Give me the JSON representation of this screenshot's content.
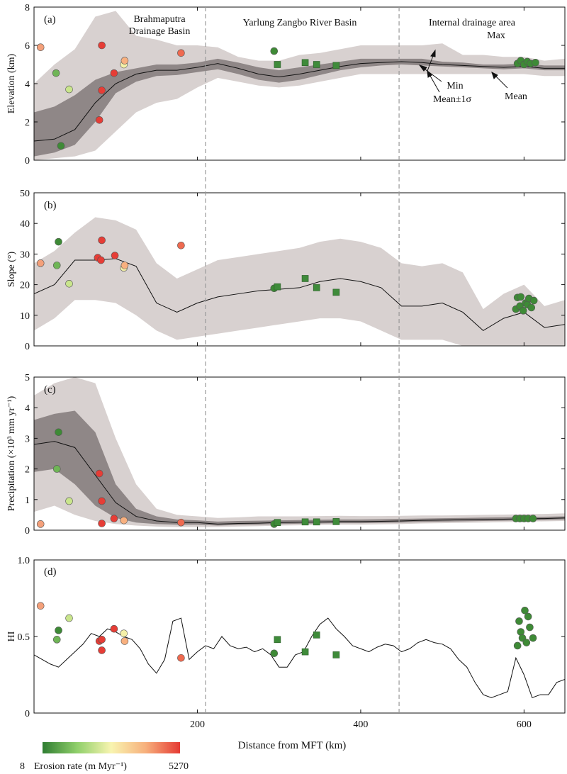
{
  "chart_data": {
    "xlabel": "Distance from MFT (km)",
    "xlim": [
      0,
      650
    ],
    "x_ticks": [
      200,
      400,
      600
    ],
    "basin_boundaries": [
      210,
      447
    ],
    "colorbar": {
      "title": "Erosion rate (m Myr⁻¹)",
      "min_label": "8",
      "max_label": "5270",
      "colors": [
        "#2f7d32",
        "#8fcf6a",
        "#f8f4b0",
        "#f7b07c",
        "#e53a33"
      ]
    },
    "colors": {
      "outer_band": "#d8d1d0",
      "inner_band": "#8f8787",
      "mean_line": "#111111",
      "square_marker": "#3f8b3a"
    },
    "panels": [
      {
        "id": "a",
        "label": "(a)",
        "ylabel": "Elevation (km)",
        "ylim": [
          0,
          8
        ],
        "y_ticks": [
          0,
          2,
          4,
          6,
          8
        ],
        "annotations": {
          "basin_brahmaputra": [
            "Brahmaputra",
            "Drainage Basin"
          ],
          "basin_yarlung": [
            "Yarlung Zangbo River Basin"
          ],
          "basin_internal": [
            "Internal drainage area"
          ],
          "max": "Max",
          "min": "Min",
          "mean_sigma": "Mean±1σ",
          "mean": "Mean"
        },
        "x": [
          0,
          25,
          50,
          75,
          100,
          125,
          150,
          175,
          200,
          225,
          250,
          275,
          300,
          325,
          350,
          375,
          400,
          425,
          450,
          475,
          500,
          525,
          550,
          575,
          600,
          625,
          650
        ],
        "mean": [
          1.0,
          1.1,
          1.6,
          3.0,
          4.0,
          4.5,
          4.7,
          4.7,
          4.85,
          5.05,
          4.8,
          4.5,
          4.35,
          4.5,
          4.7,
          4.9,
          5.05,
          5.1,
          5.15,
          5.1,
          5.0,
          4.95,
          4.9,
          4.85,
          4.9,
          4.8,
          4.8
        ],
        "band_low": [
          0.2,
          0.4,
          0.8,
          2.0,
          3.5,
          4.1,
          4.4,
          4.45,
          4.6,
          4.75,
          4.5,
          4.2,
          4.05,
          4.2,
          4.45,
          4.7,
          4.85,
          4.95,
          5.0,
          4.95,
          4.9,
          4.85,
          4.8,
          4.75,
          4.8,
          4.7,
          4.7
        ],
        "band_high": [
          2.5,
          2.8,
          3.4,
          4.2,
          4.6,
          4.8,
          5.0,
          5.0,
          5.1,
          5.3,
          5.1,
          4.85,
          4.7,
          4.85,
          5.0,
          5.15,
          5.3,
          5.3,
          5.3,
          5.3,
          5.15,
          5.1,
          5.0,
          5.0,
          5.05,
          4.95,
          4.95
        ],
        "min": [
          0.0,
          0.1,
          0.2,
          0.5,
          1.5,
          2.5,
          3.0,
          3.2,
          3.8,
          4.3,
          4.1,
          3.9,
          3.8,
          3.9,
          4.1,
          4.3,
          4.5,
          4.5,
          4.5,
          4.5,
          4.5,
          4.5,
          4.5,
          4.5,
          4.5,
          4.4,
          4.4
        ],
        "max": [
          4.0,
          5.0,
          5.8,
          7.5,
          7.8,
          6.5,
          6.3,
          6.0,
          6.0,
          5.9,
          5.4,
          5.2,
          5.2,
          5.5,
          5.6,
          5.8,
          6.0,
          6.0,
          6.0,
          6.0,
          6.1,
          5.5,
          5.5,
          5.4,
          5.4,
          5.2,
          5.3
        ],
        "circles": [
          {
            "x": 8,
            "y": 5.9,
            "c": "#f4a07a"
          },
          {
            "x": 27,
            "y": 4.55,
            "c": "#6fb556"
          },
          {
            "x": 33,
            "y": 0.75,
            "c": "#3e8a36"
          },
          {
            "x": 43,
            "y": 3.7,
            "c": "#c9e58c"
          },
          {
            "x": 80,
            "y": 2.1,
            "c": "#e63d36"
          },
          {
            "x": 83,
            "y": 3.65,
            "c": "#e63d36"
          },
          {
            "x": 83,
            "y": 6.0,
            "c": "#e63d36"
          },
          {
            "x": 98,
            "y": 4.55,
            "c": "#e63d36"
          },
          {
            "x": 110,
            "y": 5.0,
            "c": "#f4f0a8"
          },
          {
            "x": 111,
            "y": 5.2,
            "c": "#f8b07f"
          },
          {
            "x": 180,
            "y": 5.6,
            "c": "#ef6a50"
          },
          {
            "x": 294,
            "y": 5.7,
            "c": "#3e8a36"
          },
          {
            "x": 592,
            "y": 5.05,
            "c": "#3e8a36"
          },
          {
            "x": 596,
            "y": 5.2,
            "c": "#3e8a36"
          },
          {
            "x": 600,
            "y": 5.0,
            "c": "#3e8a36"
          },
          {
            "x": 604,
            "y": 5.15,
            "c": "#3e8a36"
          },
          {
            "x": 608,
            "y": 5.05,
            "c": "#3e8a36"
          },
          {
            "x": 614,
            "y": 5.1,
            "c": "#3e8a36"
          }
        ],
        "squares": [
          {
            "x": 298,
            "y": 5.0
          },
          {
            "x": 332,
            "y": 5.1
          },
          {
            "x": 346,
            "y": 5.0
          },
          {
            "x": 370,
            "y": 4.95
          }
        ]
      },
      {
        "id": "b",
        "label": "(b)",
        "ylabel": "Slope (°)",
        "ylim": [
          0,
          50
        ],
        "y_ticks": [
          0,
          10,
          20,
          30,
          40,
          50
        ],
        "x": [
          0,
          25,
          50,
          75,
          100,
          125,
          150,
          175,
          200,
          225,
          250,
          275,
          300,
          325,
          350,
          375,
          400,
          425,
          450,
          475,
          500,
          525,
          550,
          575,
          600,
          625,
          650
        ],
        "mean": [
          17,
          20,
          28,
          28,
          28.5,
          26,
          14,
          11,
          14,
          16,
          17,
          18,
          18.5,
          19,
          21,
          22,
          21,
          19,
          13,
          13,
          14,
          11,
          5,
          9,
          11,
          6,
          7
        ],
        "min": [
          5,
          9,
          15,
          15,
          14,
          10,
          5,
          2,
          3,
          4,
          5,
          6,
          7,
          8,
          9,
          9,
          8,
          5,
          2,
          2,
          2,
          0,
          -1,
          -1,
          0,
          -1,
          -1
        ],
        "max": [
          27,
          31,
          37,
          42,
          41,
          38,
          27,
          22,
          25,
          28,
          29,
          30,
          31,
          32,
          34,
          35,
          34,
          32,
          27,
          26,
          27,
          24,
          12,
          17,
          20,
          13,
          15
        ],
        "circles": [
          {
            "x": 8,
            "y": 27,
            "c": "#f4a07a"
          },
          {
            "x": 30,
            "y": 34,
            "c": "#3e8a36"
          },
          {
            "x": 28,
            "y": 26.3,
            "c": "#6fb556"
          },
          {
            "x": 43,
            "y": 20.3,
            "c": "#c9e58c"
          },
          {
            "x": 78,
            "y": 28.8,
            "c": "#e63d36"
          },
          {
            "x": 82,
            "y": 28.0,
            "c": "#e63d36"
          },
          {
            "x": 83,
            "y": 34.5,
            "c": "#e63d36"
          },
          {
            "x": 99,
            "y": 29.5,
            "c": "#e63d36"
          },
          {
            "x": 110,
            "y": 25.5,
            "c": "#f4f0a8"
          },
          {
            "x": 111,
            "y": 26.3,
            "c": "#f8b07f"
          },
          {
            "x": 180,
            "y": 32.8,
            "c": "#ef6a50"
          },
          {
            "x": 294,
            "y": 18.8,
            "c": "#3e8a36"
          },
          {
            "x": 590,
            "y": 12.0,
            "c": "#3e8a36"
          },
          {
            "x": 592,
            "y": 15.8,
            "c": "#3e8a36"
          },
          {
            "x": 595,
            "y": 13.0,
            "c": "#3e8a36"
          },
          {
            "x": 596,
            "y": 16.0,
            "c": "#3e8a36"
          },
          {
            "x": 599,
            "y": 11.5,
            "c": "#3e8a36"
          },
          {
            "x": 602,
            "y": 14.0,
            "c": "#3e8a36"
          },
          {
            "x": 604,
            "y": 13.5,
            "c": "#3e8a36"
          },
          {
            "x": 606,
            "y": 15.5,
            "c": "#3e8a36"
          },
          {
            "x": 609,
            "y": 12.5,
            "c": "#3e8a36"
          },
          {
            "x": 612,
            "y": 14.8,
            "c": "#3e8a36"
          }
        ],
        "squares": [
          {
            "x": 298,
            "y": 19.3
          },
          {
            "x": 332,
            "y": 22.0
          },
          {
            "x": 346,
            "y": 19.0
          },
          {
            "x": 370,
            "y": 17.5
          }
        ]
      },
      {
        "id": "c",
        "label": "(c)",
        "ylabel": "Precipitation (×10³ mm yr⁻¹)",
        "ylim": [
          0,
          5
        ],
        "y_ticks": [
          0,
          1,
          2,
          3,
          4,
          5
        ],
        "x": [
          0,
          25,
          50,
          75,
          100,
          125,
          150,
          175,
          200,
          225,
          250,
          275,
          300,
          325,
          350,
          375,
          400,
          425,
          450,
          475,
          500,
          525,
          550,
          575,
          600,
          625,
          650
        ],
        "mean": [
          2.8,
          2.9,
          2.7,
          1.8,
          0.9,
          0.45,
          0.3,
          0.25,
          0.25,
          0.2,
          0.22,
          0.23,
          0.25,
          0.26,
          0.27,
          0.28,
          0.28,
          0.29,
          0.3,
          0.32,
          0.33,
          0.34,
          0.35,
          0.36,
          0.37,
          0.38,
          0.4
        ],
        "band_low": [
          1.9,
          2.0,
          1.5,
          0.8,
          0.4,
          0.25,
          0.2,
          0.18,
          0.18,
          0.15,
          0.17,
          0.18,
          0.2,
          0.21,
          0.22,
          0.23,
          0.23,
          0.24,
          0.25,
          0.27,
          0.28,
          0.29,
          0.3,
          0.31,
          0.32,
          0.33,
          0.35
        ],
        "band_high": [
          3.6,
          3.8,
          3.9,
          3.2,
          1.5,
          0.7,
          0.45,
          0.35,
          0.32,
          0.28,
          0.3,
          0.31,
          0.32,
          0.33,
          0.34,
          0.35,
          0.35,
          0.36,
          0.37,
          0.38,
          0.39,
          0.4,
          0.41,
          0.42,
          0.43,
          0.44,
          0.45
        ],
        "min": [
          0.6,
          0.8,
          0.5,
          0.3,
          0.2,
          0.15,
          0.12,
          0.1,
          0.1,
          0.1,
          0.12,
          0.13,
          0.15,
          0.16,
          0.17,
          0.18,
          0.18,
          0.19,
          0.2,
          0.22,
          0.23,
          0.24,
          0.25,
          0.26,
          0.28,
          0.29,
          0.3
        ],
        "max": [
          4.4,
          4.8,
          5.0,
          4.8,
          3.0,
          1.5,
          0.7,
          0.5,
          0.45,
          0.4,
          0.42,
          0.45,
          0.45,
          0.45,
          0.46,
          0.47,
          0.46,
          0.46,
          0.47,
          0.48,
          0.48,
          0.49,
          0.5,
          0.51,
          0.52,
          0.53,
          0.55
        ],
        "circles": [
          {
            "x": 8,
            "y": 0.2,
            "c": "#f4a07a"
          },
          {
            "x": 30,
            "y": 3.2,
            "c": "#3e8a36"
          },
          {
            "x": 28,
            "y": 2.0,
            "c": "#6fb556"
          },
          {
            "x": 43,
            "y": 0.95,
            "c": "#c9e58c"
          },
          {
            "x": 80,
            "y": 1.85,
            "c": "#e63d36"
          },
          {
            "x": 83,
            "y": 0.95,
            "c": "#e63d36"
          },
          {
            "x": 83,
            "y": 0.22,
            "c": "#e63d36"
          },
          {
            "x": 98,
            "y": 0.38,
            "c": "#e63d36"
          },
          {
            "x": 110,
            "y": 0.32,
            "c": "#f8b07f"
          },
          {
            "x": 180,
            "y": 0.25,
            "c": "#ef6a50"
          },
          {
            "x": 294,
            "y": 0.2,
            "c": "#3e8a36"
          },
          {
            "x": 590,
            "y": 0.38,
            "c": "#3e8a36"
          },
          {
            "x": 595,
            "y": 0.38,
            "c": "#3e8a36"
          },
          {
            "x": 600,
            "y": 0.38,
            "c": "#3e8a36"
          },
          {
            "x": 605,
            "y": 0.38,
            "c": "#3e8a36"
          },
          {
            "x": 611,
            "y": 0.38,
            "c": "#3e8a36"
          }
        ],
        "squares": [
          {
            "x": 298,
            "y": 0.25
          },
          {
            "x": 332,
            "y": 0.27
          },
          {
            "x": 346,
            "y": 0.27
          },
          {
            "x": 370,
            "y": 0.28
          }
        ]
      },
      {
        "id": "d",
        "label": "(d)",
        "ylabel": "HI",
        "ylim": [
          0,
          1.0
        ],
        "y_ticks": [
          0,
          0.5,
          1.0
        ],
        "y_tick_labels": [
          "0",
          "0.5",
          "1.0"
        ],
        "x": [
          0,
          10,
          20,
          30,
          40,
          50,
          60,
          70,
          80,
          90,
          100,
          110,
          120,
          130,
          140,
          150,
          160,
          170,
          180,
          190,
          200,
          210,
          220,
          230,
          240,
          250,
          260,
          270,
          280,
          290,
          300,
          310,
          320,
          330,
          340,
          350,
          360,
          370,
          380,
          390,
          400,
          410,
          420,
          430,
          440,
          450,
          460,
          470,
          480,
          490,
          500,
          510,
          520,
          530,
          540,
          550,
          560,
          570,
          580,
          590,
          600,
          610,
          620,
          630,
          640,
          650
        ],
        "hi": [
          0.38,
          0.35,
          0.32,
          0.3,
          0.35,
          0.4,
          0.45,
          0.52,
          0.5,
          0.55,
          0.53,
          0.5,
          0.48,
          0.42,
          0.32,
          0.26,
          0.35,
          0.6,
          0.62,
          0.35,
          0.4,
          0.44,
          0.42,
          0.5,
          0.44,
          0.42,
          0.43,
          0.4,
          0.42,
          0.38,
          0.3,
          0.3,
          0.38,
          0.4,
          0.5,
          0.58,
          0.62,
          0.55,
          0.5,
          0.44,
          0.42,
          0.4,
          0.43,
          0.45,
          0.44,
          0.4,
          0.42,
          0.46,
          0.48,
          0.46,
          0.45,
          0.42,
          0.35,
          0.3,
          0.2,
          0.12,
          0.1,
          0.12,
          0.14,
          0.36,
          0.25,
          0.1,
          0.12,
          0.12,
          0.2,
          0.22
        ],
        "circles": [
          {
            "x": 8,
            "y": 0.7,
            "c": "#f4a07a"
          },
          {
            "x": 30,
            "y": 0.54,
            "c": "#3e8a36"
          },
          {
            "x": 28,
            "y": 0.48,
            "c": "#6fb556"
          },
          {
            "x": 43,
            "y": 0.62,
            "c": "#c9e58c"
          },
          {
            "x": 80,
            "y": 0.47,
            "c": "#e63d36"
          },
          {
            "x": 83,
            "y": 0.48,
            "c": "#e63d36"
          },
          {
            "x": 83,
            "y": 0.41,
            "c": "#e63d36"
          },
          {
            "x": 98,
            "y": 0.55,
            "c": "#e63d36"
          },
          {
            "x": 110,
            "y": 0.52,
            "c": "#f4f0a8"
          },
          {
            "x": 111,
            "y": 0.47,
            "c": "#f8b07f"
          },
          {
            "x": 180,
            "y": 0.36,
            "c": "#ef6a50"
          },
          {
            "x": 294,
            "y": 0.39,
            "c": "#3e8a36"
          },
          {
            "x": 592,
            "y": 0.44,
            "c": "#3e8a36"
          },
          {
            "x": 594,
            "y": 0.6,
            "c": "#3e8a36"
          },
          {
            "x": 596,
            "y": 0.53,
            "c": "#3e8a36"
          },
          {
            "x": 598,
            "y": 0.49,
            "c": "#3e8a36"
          },
          {
            "x": 601,
            "y": 0.67,
            "c": "#3e8a36"
          },
          {
            "x": 603,
            "y": 0.46,
            "c": "#3e8a36"
          },
          {
            "x": 605,
            "y": 0.63,
            "c": "#3e8a36"
          },
          {
            "x": 607,
            "y": 0.56,
            "c": "#3e8a36"
          },
          {
            "x": 611,
            "y": 0.49,
            "c": "#3e8a36"
          }
        ],
        "squares": [
          {
            "x": 298,
            "y": 0.48
          },
          {
            "x": 332,
            "y": 0.4
          },
          {
            "x": 346,
            "y": 0.51
          },
          {
            "x": 370,
            "y": 0.38
          }
        ]
      }
    ]
  }
}
